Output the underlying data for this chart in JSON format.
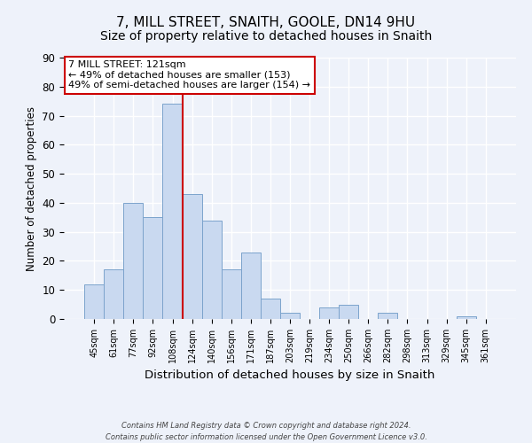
{
  "title": "7, MILL STREET, SNAITH, GOOLE, DN14 9HU",
  "subtitle": "Size of property relative to detached houses in Snaith",
  "xlabel": "Distribution of detached houses by size in Snaith",
  "ylabel": "Number of detached properties",
  "bar_labels": [
    "45sqm",
    "61sqm",
    "77sqm",
    "92sqm",
    "108sqm",
    "124sqm",
    "140sqm",
    "156sqm",
    "171sqm",
    "187sqm",
    "203sqm",
    "219sqm",
    "234sqm",
    "250sqm",
    "266sqm",
    "282sqm",
    "298sqm",
    "313sqm",
    "329sqm",
    "345sqm",
    "361sqm"
  ],
  "bar_values": [
    12,
    17,
    40,
    35,
    74,
    43,
    34,
    17,
    23,
    7,
    2,
    0,
    4,
    5,
    0,
    2,
    0,
    0,
    0,
    1,
    0
  ],
  "bar_color": "#c9d9f0",
  "bar_edgecolor": "#7ca3cc",
  "vline_index": 4,
  "vline_color": "#cc0000",
  "ylim": [
    0,
    90
  ],
  "yticks": [
    0,
    10,
    20,
    30,
    40,
    50,
    60,
    70,
    80,
    90
  ],
  "annotation_title": "7 MILL STREET: 121sqm",
  "annotation_line1": "← 49% of detached houses are smaller (153)",
  "annotation_line2": "49% of semi-detached houses are larger (154) →",
  "annotation_box_color": "#ffffff",
  "annotation_box_edgecolor": "#cc0000",
  "footer_line1": "Contains HM Land Registry data © Crown copyright and database right 2024.",
  "footer_line2": "Contains public sector information licensed under the Open Government Licence v3.0.",
  "background_color": "#eef2fa",
  "grid_color": "#ffffff",
  "title_fontsize": 11,
  "subtitle_fontsize": 10
}
